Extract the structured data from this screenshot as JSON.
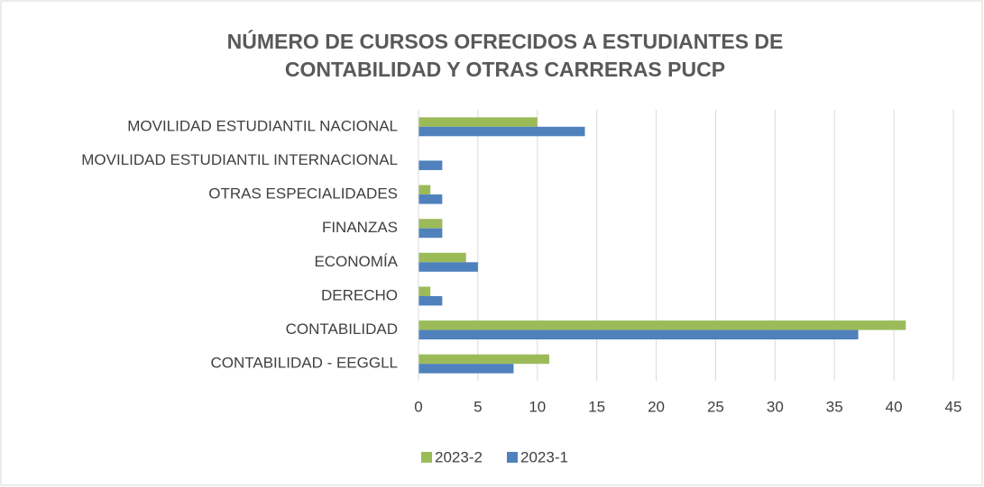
{
  "chart_data": {
    "type": "barh",
    "title": [
      "NÚMERO DE CURSOS OFRECIDOS A ESTUDIANTES DE",
      "CONTABILIDAD Y OTRAS CARRERAS PUCP"
    ],
    "categories": [
      "MOVILIDAD ESTUDIANTIL NACIONAL",
      "MOVILIDAD ESTUDIANTIL INTERNACIONAL",
      "OTRAS ESPECIALIDADES",
      "FINANZAS",
      "ECONOMÍA",
      "DERECHO",
      "CONTABILIDAD",
      "CONTABILIDAD - EEGGLL"
    ],
    "series": [
      {
        "name": "2023-2",
        "color": "#9bbb59",
        "values": [
          10,
          0,
          1,
          2,
          4,
          1,
          41,
          11
        ]
      },
      {
        "name": "2023-1",
        "color": "#4f81bd",
        "values": [
          14,
          2,
          2,
          2,
          5,
          2,
          37,
          8
        ]
      }
    ],
    "xlim": [
      0,
      45
    ],
    "xticks": [
      0,
      5,
      10,
      15,
      20,
      25,
      30,
      35,
      40,
      45
    ],
    "grid": true,
    "legend": "bottom"
  }
}
